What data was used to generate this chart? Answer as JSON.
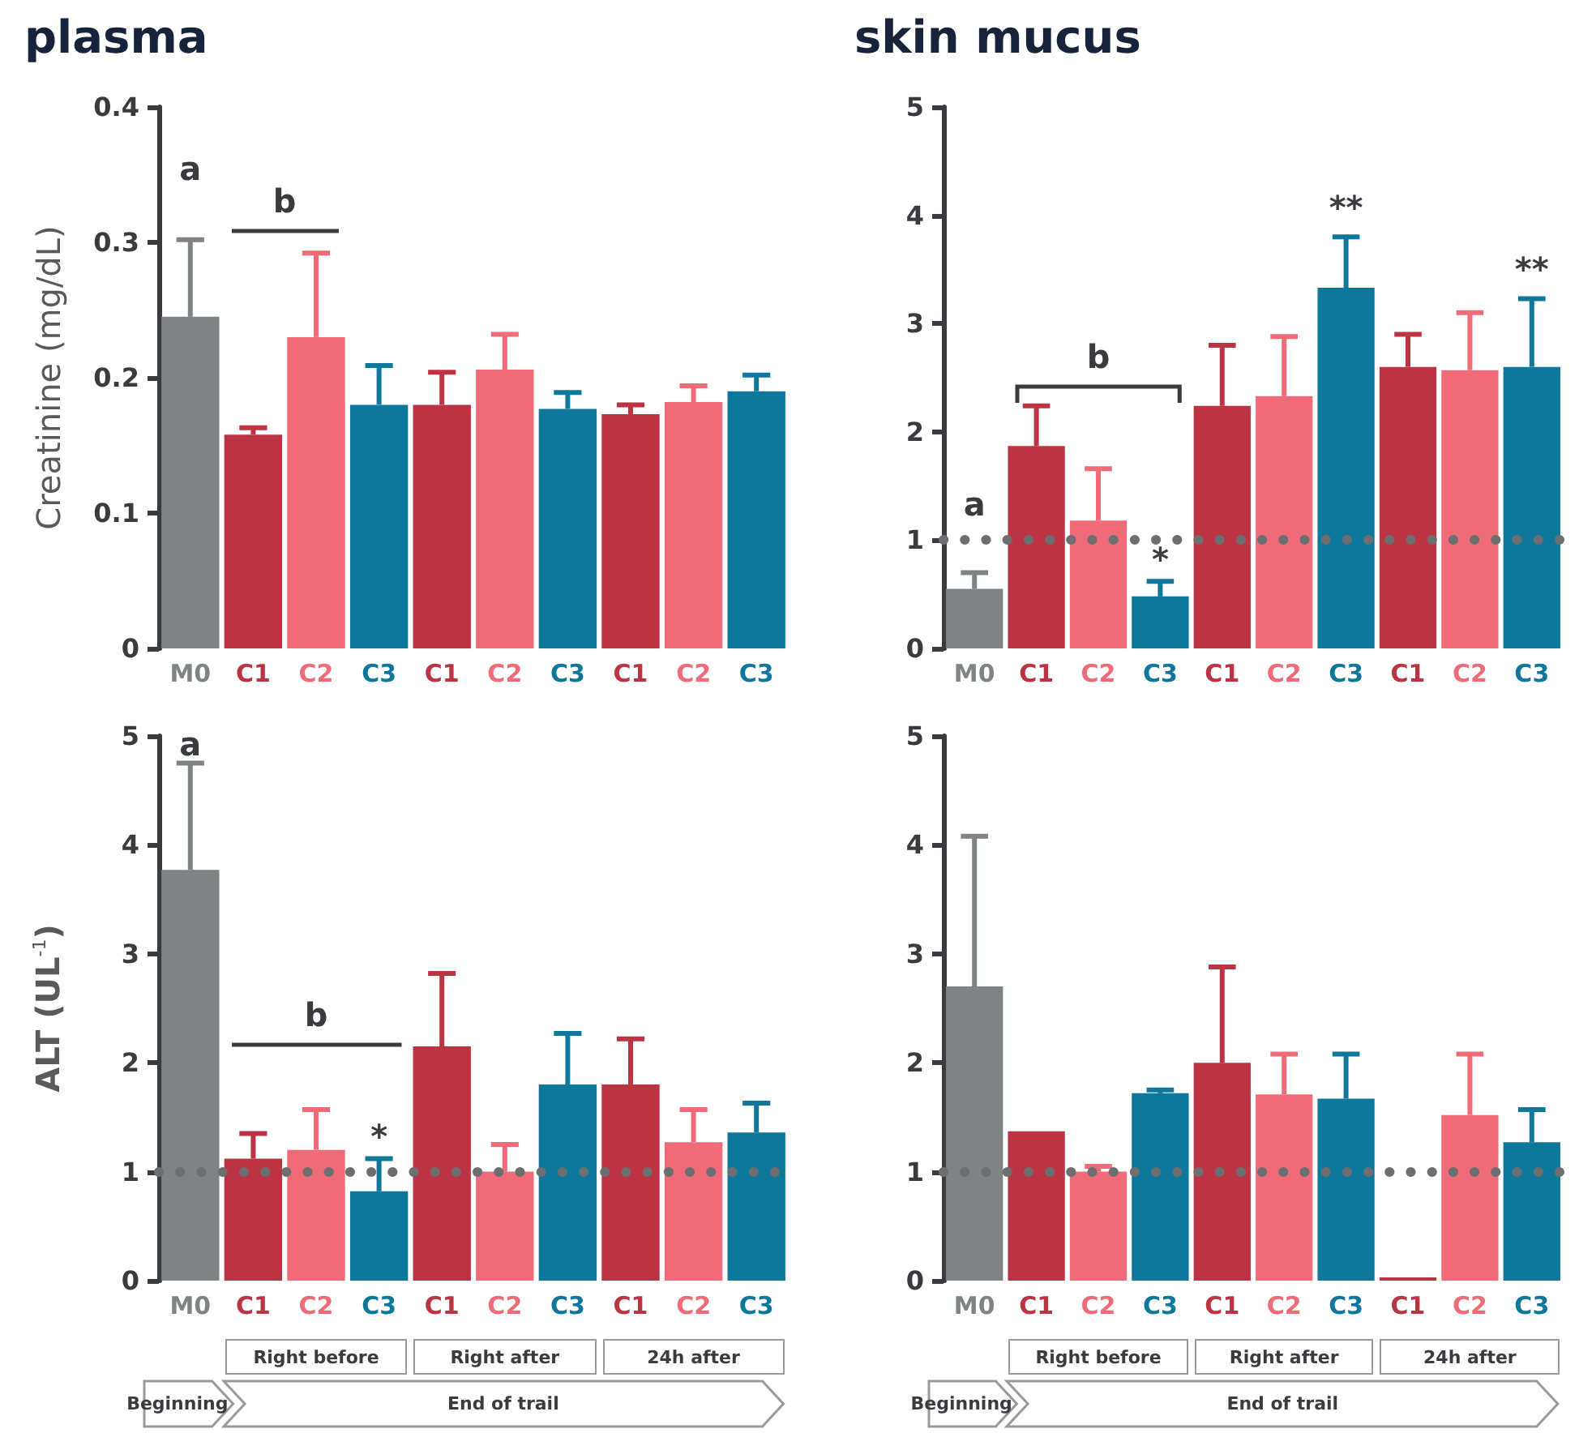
{
  "chart_data": [
    {
      "type": "bar",
      "title": "plasma",
      "ylabel": "Creatinine (mg/dL)",
      "categories": [
        "M0",
        "C1",
        "C2",
        "C3",
        "C1",
        "C2",
        "C3",
        "C1",
        "C2",
        "C3"
      ],
      "values": [
        0.245,
        0.158,
        0.23,
        0.18,
        0.18,
        0.206,
        0.177,
        0.173,
        0.182,
        0.19
      ],
      "errors": [
        [
          0.245,
          0.302
        ],
        [
          0.158,
          0.163
        ],
        [
          0.23,
          0.292
        ],
        [
          0.18,
          0.209
        ],
        [
          0.18,
          0.204
        ],
        [
          0.206,
          0.232
        ],
        [
          0.177,
          0.189
        ],
        [
          0.173,
          0.18
        ],
        [
          0.182,
          0.194
        ],
        [
          0.19,
          0.202
        ]
      ],
      "colors": [
        "#7f8383",
        "#bc3444",
        "#ef6b78",
        "#0e789c",
        "#bc3444",
        "#ef6b78",
        "#0e789c",
        "#bc3444",
        "#ef6b78",
        "#0e789c"
      ],
      "ylim": [
        0,
        0.4
      ],
      "yticks": [
        0,
        0.1,
        0.2,
        0.3,
        0.4
      ],
      "annotations": [
        "a",
        "b"
      ]
    },
    {
      "type": "bar",
      "title": "skin mucus",
      "categories": [
        "M0",
        "C1",
        "C2",
        "C3",
        "C1",
        "C2",
        "C3",
        "C1",
        "C2",
        "C3"
      ],
      "values": [
        0.55,
        1.87,
        1.18,
        0.48,
        2.24,
        2.33,
        3.33,
        2.6,
        2.57,
        2.6
      ],
      "errors": [
        [
          0.55,
          0.7
        ],
        [
          1.87,
          2.24
        ],
        [
          1.18,
          1.66
        ],
        [
          0.48,
          0.62
        ],
        [
          2.24,
          2.8
        ],
        [
          2.33,
          2.88
        ],
        [
          3.33,
          3.8
        ],
        [
          2.6,
          2.9
        ],
        [
          2.57,
          3.1
        ],
        [
          2.6,
          3.23
        ]
      ],
      "colors": [
        "#7f8383",
        "#bc3444",
        "#ef6b78",
        "#0e789c",
        "#bc3444",
        "#ef6b78",
        "#0e789c",
        "#bc3444",
        "#ef6b78",
        "#0e789c"
      ],
      "ylim": [
        0,
        5
      ],
      "yticks": [
        0,
        1,
        2,
        3,
        4,
        5
      ],
      "ref_lines": [
        {
          "axis": "y",
          "value": 1,
          "line_style": "dotted",
          "color": "#6d6e70"
        }
      ],
      "annotations": [
        "a",
        "b",
        "*",
        "**",
        "**"
      ]
    },
    {
      "type": "bar",
      "ylabel": "ALT (UL$^{-1}$)",
      "categories": [
        "M0",
        "C1",
        "C2",
        "C3",
        "C1",
        "C2",
        "C3",
        "C1",
        "C2",
        "C3"
      ],
      "values": [
        3.77,
        1.12,
        1.2,
        0.82,
        2.15,
        1.0,
        1.8,
        1.8,
        1.27,
        1.36
      ],
      "errors": [
        [
          3.77,
          4.75
        ],
        [
          1.12,
          1.35
        ],
        [
          1.2,
          1.57
        ],
        [
          0.82,
          1.12
        ],
        [
          2.15,
          2.82
        ],
        [
          1.0,
          1.25
        ],
        [
          1.8,
          2.27
        ],
        [
          1.8,
          2.22
        ],
        [
          1.27,
          1.57
        ],
        [
          1.36,
          1.63
        ]
      ],
      "colors": [
        "#7f8383",
        "#bc3444",
        "#ef6b78",
        "#0e789c",
        "#bc3444",
        "#ef6b78",
        "#0e789c",
        "#bc3444",
        "#ef6b78",
        "#0e789c"
      ],
      "ylim": [
        0,
        5
      ],
      "yticks": [
        0,
        1,
        2,
        3,
        4,
        5
      ],
      "ref_lines": [
        {
          "axis": "y",
          "value": 1,
          "line_style": "dotted",
          "color": "#6d6e70"
        }
      ],
      "annotations": [
        "a",
        "b",
        "*",
        "Right before",
        "Right after",
        "24h after",
        "Beginning",
        "End of trail"
      ]
    },
    {
      "type": "bar",
      "categories": [
        "M0",
        "C1",
        "C2",
        "C3",
        "C1",
        "C2",
        "C3",
        "C1",
        "C2",
        "C3"
      ],
      "values": [
        2.7,
        1.37,
        1.0,
        1.72,
        2.0,
        1.71,
        1.67,
        0.03,
        1.52,
        1.27
      ],
      "errors": [
        [
          2.7,
          4.08
        ],
        null,
        [
          1.0,
          1.05
        ],
        [
          1.72,
          1.75
        ],
        [
          2.0,
          2.88
        ],
        [
          1.71,
          2.08
        ],
        [
          1.67,
          2.08
        ],
        null,
        [
          1.52,
          2.08
        ],
        [
          1.27,
          1.57
        ]
      ],
      "colors": [
        "#7f8383",
        "#bc3444",
        "#ef6b78",
        "#0e789c",
        "#bc3444",
        "#ef6b78",
        "#0e789c",
        "#bc3444",
        "#ef6b78",
        "#0e789c"
      ],
      "ylim": [
        0,
        5
      ],
      "yticks": [
        0,
        1,
        2,
        3,
        4,
        5
      ],
      "ref_lines": [
        {
          "axis": "y",
          "value": 1,
          "line_style": "dotted",
          "color": "#6d6e70"
        }
      ],
      "annotations": [
        "Right before",
        "Right after",
        "24h after",
        "Beginning",
        "End of trail"
      ]
    }
  ]
}
